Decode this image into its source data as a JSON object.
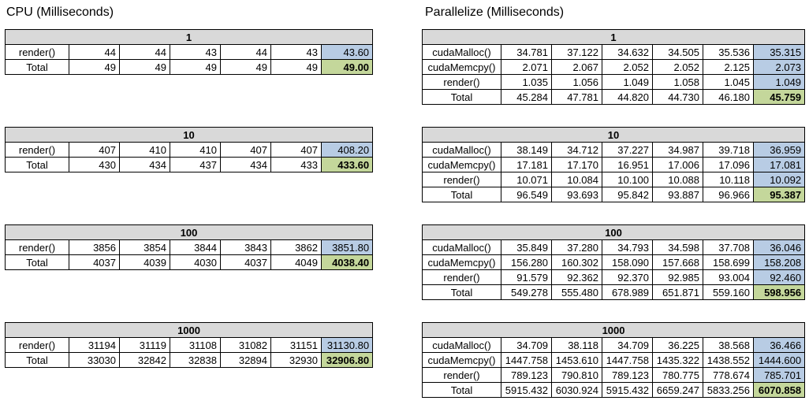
{
  "cpu": {
    "title": "CPU (Milliseconds)",
    "blocks": [
      {
        "header": "1",
        "rows": [
          {
            "label": "render()",
            "values": [
              "44",
              "44",
              "43",
              "44",
              "43"
            ],
            "avg": "43.60"
          },
          {
            "label": "Total",
            "values": [
              "49",
              "49",
              "49",
              "49",
              "49"
            ],
            "avg": "49.00"
          }
        ]
      },
      {
        "header": "10",
        "rows": [
          {
            "label": "render()",
            "values": [
              "407",
              "410",
              "410",
              "407",
              "407"
            ],
            "avg": "408.20"
          },
          {
            "label": "Total",
            "values": [
              "430",
              "434",
              "437",
              "434",
              "433"
            ],
            "avg": "433.60"
          }
        ]
      },
      {
        "header": "100",
        "rows": [
          {
            "label": "render()",
            "values": [
              "3856",
              "3854",
              "3844",
              "3843",
              "3862"
            ],
            "avg": "3851.80"
          },
          {
            "label": "Total",
            "values": [
              "4037",
              "4039",
              "4030",
              "4037",
              "4049"
            ],
            "avg": "4038.40"
          }
        ]
      },
      {
        "header": "1000",
        "rows": [
          {
            "label": "render()",
            "values": [
              "31194",
              "31119",
              "31108",
              "31082",
              "31151"
            ],
            "avg": "31130.80"
          },
          {
            "label": "Total",
            "values": [
              "33030",
              "32842",
              "32838",
              "32894",
              "32930"
            ],
            "avg": "32906.80"
          }
        ]
      }
    ]
  },
  "parallel": {
    "title": "Parallelize (Milliseconds)",
    "blocks": [
      {
        "header": "1",
        "rows": [
          {
            "label": "cudaMalloc()",
            "values": [
              "34.781",
              "37.122",
              "34.632",
              "34.505",
              "35.536"
            ],
            "avg": "35.315"
          },
          {
            "label": "cudaMemcpy()",
            "values": [
              "2.071",
              "2.067",
              "2.052",
              "2.052",
              "2.125"
            ],
            "avg": "2.073"
          },
          {
            "label": "render()",
            "values": [
              "1.035",
              "1.056",
              "1.049",
              "1.058",
              "1.045"
            ],
            "avg": "1.049"
          },
          {
            "label": "Total",
            "values": [
              "45.284",
              "47.781",
              "44.820",
              "44.730",
              "46.180"
            ],
            "avg": "45.759"
          }
        ]
      },
      {
        "header": "10",
        "rows": [
          {
            "label": "cudaMalloc()",
            "values": [
              "38.149",
              "34.712",
              "37.227",
              "34.987",
              "39.718"
            ],
            "avg": "36.959"
          },
          {
            "label": "cudaMemcpy()",
            "values": [
              "17.181",
              "17.170",
              "16.951",
              "17.006",
              "17.096"
            ],
            "avg": "17.081"
          },
          {
            "label": "render()",
            "values": [
              "10.071",
              "10.084",
              "10.100",
              "10.088",
              "10.118"
            ],
            "avg": "10.092"
          },
          {
            "label": "Total",
            "values": [
              "96.549",
              "93.693",
              "95.842",
              "93.887",
              "96.966"
            ],
            "avg": "95.387"
          }
        ]
      },
      {
        "header": "100",
        "rows": [
          {
            "label": "cudaMalloc()",
            "values": [
              "35.849",
              "37.280",
              "34.793",
              "34.598",
              "37.708"
            ],
            "avg": "36.046"
          },
          {
            "label": "cudaMemcpy()",
            "values": [
              "156.280",
              "160.302",
              "158.090",
              "157.668",
              "158.699"
            ],
            "avg": "158.208"
          },
          {
            "label": "render()",
            "values": [
              "91.579",
              "92.362",
              "92.370",
              "92.985",
              "93.004"
            ],
            "avg": "92.460"
          },
          {
            "label": "Total",
            "values": [
              "549.278",
              "555.480",
              "678.989",
              "651.871",
              "559.160"
            ],
            "avg": "598.956"
          }
        ]
      },
      {
        "header": "1000",
        "rows": [
          {
            "label": "cudaMalloc()",
            "values": [
              "34.709",
              "38.118",
              "34.709",
              "36.225",
              "38.568"
            ],
            "avg": "36.466"
          },
          {
            "label": "cudaMemcpy()",
            "values": [
              "1447.758",
              "1453.610",
              "1447.758",
              "1435.322",
              "1438.552"
            ],
            "avg": "1444.600"
          },
          {
            "label": "render()",
            "values": [
              "789.123",
              "790.810",
              "789.123",
              "780.775",
              "778.674"
            ],
            "avg": "785.701"
          },
          {
            "label": "Total",
            "values": [
              "5915.432",
              "6030.924",
              "5915.432",
              "6659.247",
              "5833.256"
            ],
            "avg": "6070.858"
          }
        ]
      }
    ]
  }
}
